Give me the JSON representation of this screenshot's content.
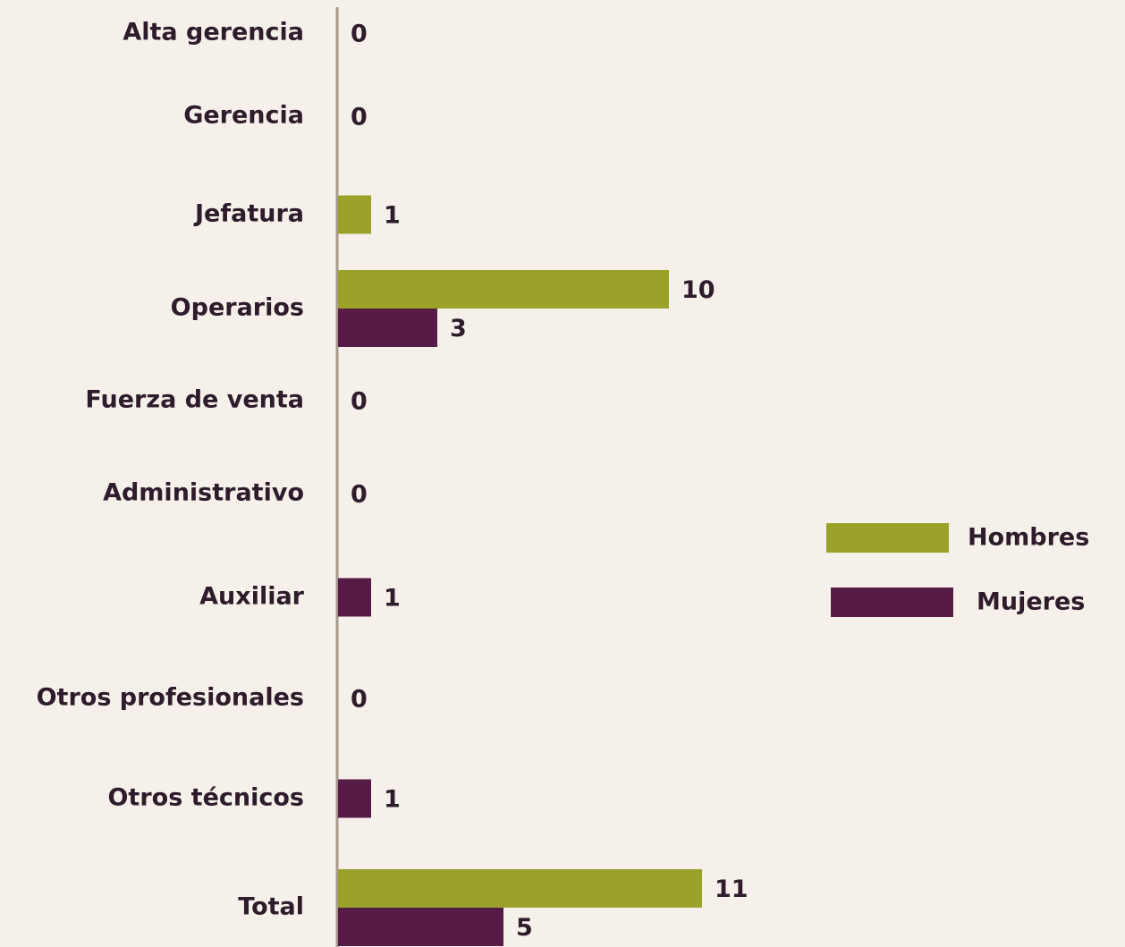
{
  "chart_data": {
    "type": "bar",
    "orientation": "horizontal",
    "categories": [
      "Alta gerencia",
      "Gerencia",
      "Jefatura",
      "Operarios",
      "Fuerza de venta",
      "Administrativo",
      "Auxiliar",
      "Otros profesionales",
      "Otros técnicos",
      "Total"
    ],
    "series": [
      {
        "name": "Hombres",
        "color": "#9aa22a",
        "values": [
          0,
          0,
          1,
          10,
          0,
          0,
          0,
          0,
          0,
          11
        ]
      },
      {
        "name": "Mujeres",
        "color": "#561c47",
        "values": [
          0,
          0,
          0,
          3,
          0,
          0,
          1,
          0,
          1,
          5
        ]
      }
    ],
    "legend": "right"
  }
}
